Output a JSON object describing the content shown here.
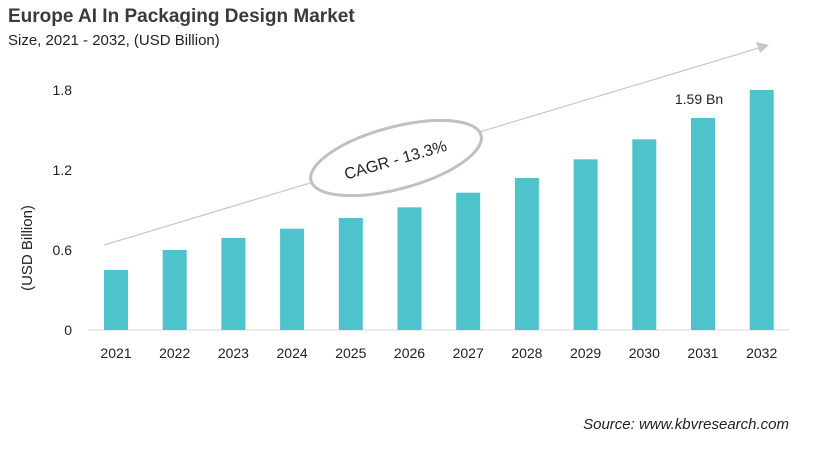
{
  "chart_data": {
    "type": "bar",
    "title": "Europe AI In Packaging Design Market",
    "subtitle": "Size, 2021 - 2032, (USD Billion)",
    "xlabel": "",
    "ylabel": "(USD Billion)",
    "categories": [
      "2021",
      "2022",
      "2023",
      "2024",
      "2025",
      "2026",
      "2027",
      "2028",
      "2029",
      "2030",
      "2031",
      "2032"
    ],
    "values": [
      0.45,
      0.6,
      0.69,
      0.76,
      0.84,
      0.92,
      1.03,
      1.14,
      1.28,
      1.43,
      1.59,
      1.8
    ],
    "ylim": [
      0,
      1.8
    ],
    "yticks": [
      "0",
      "0.6",
      "1.2",
      "1.8"
    ],
    "grid": false,
    "bar_color": "#4fc3cc",
    "annotations": {
      "value_label": "1.59 Bn",
      "value_label_category": "2031",
      "cagr": "CAGR - 13.3%"
    }
  },
  "source": "Source: www.kbvresearch.com"
}
